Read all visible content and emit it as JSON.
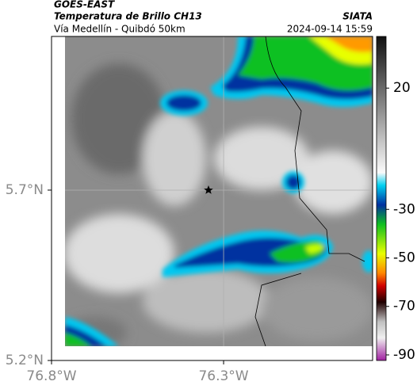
{
  "header": {
    "satellite": "GOES-EAST",
    "product": "Temperatura de Brillo CH13",
    "region": "Vía Medellín - Quibdó 50km",
    "timestamp": "2024-09-14 15:59",
    "source": "SIATA"
  },
  "map": {
    "latlim": [
      5.2,
      6.151
    ],
    "lonlim": [
      -76.8,
      -75.867
    ],
    "lat_ticks": [
      {
        "value": 5.7,
        "label": "5.7°N"
      },
      {
        "value": 5.2,
        "label": "5.2°N"
      }
    ],
    "lon_ticks": [
      {
        "value": -76.8,
        "label": "76.8°W"
      },
      {
        "value": -76.3,
        "label": "76.3°W"
      }
    ]
  },
  "colorbar": {
    "lim": [
      41.3,
      -92.3
    ],
    "ticks": [
      20,
      -30,
      -50,
      -70,
      -90
    ]
  }
}
